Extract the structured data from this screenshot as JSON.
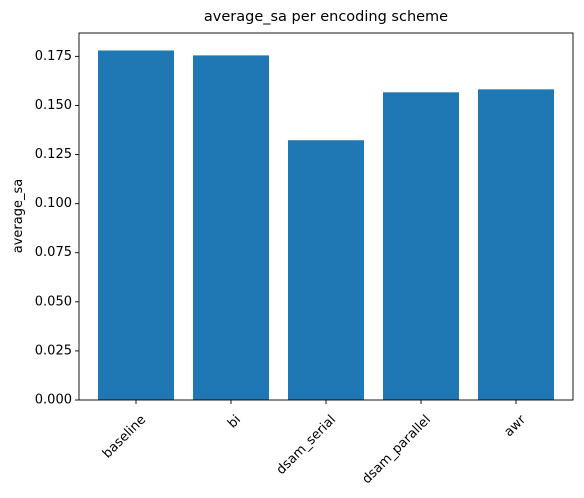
{
  "chart_data": {
    "type": "bar",
    "title": "average_sa per encoding scheme",
    "xlabel": "",
    "ylabel": "average_sa",
    "categories": [
      "baseline",
      "bi",
      "dsam_serial",
      "dsam_parallel",
      "awr"
    ],
    "values": [
      0.178,
      0.1755,
      0.1323,
      0.1567,
      0.1582
    ],
    "ylim": [
      0,
      0.1869
    ],
    "yticks": [
      "0.000",
      "0.025",
      "0.050",
      "0.075",
      "0.100",
      "0.125",
      "0.150",
      "0.175"
    ],
    "bar_color": "#1f77b4",
    "grid": false,
    "legend": "none",
    "xtick_rotation": 45
  }
}
